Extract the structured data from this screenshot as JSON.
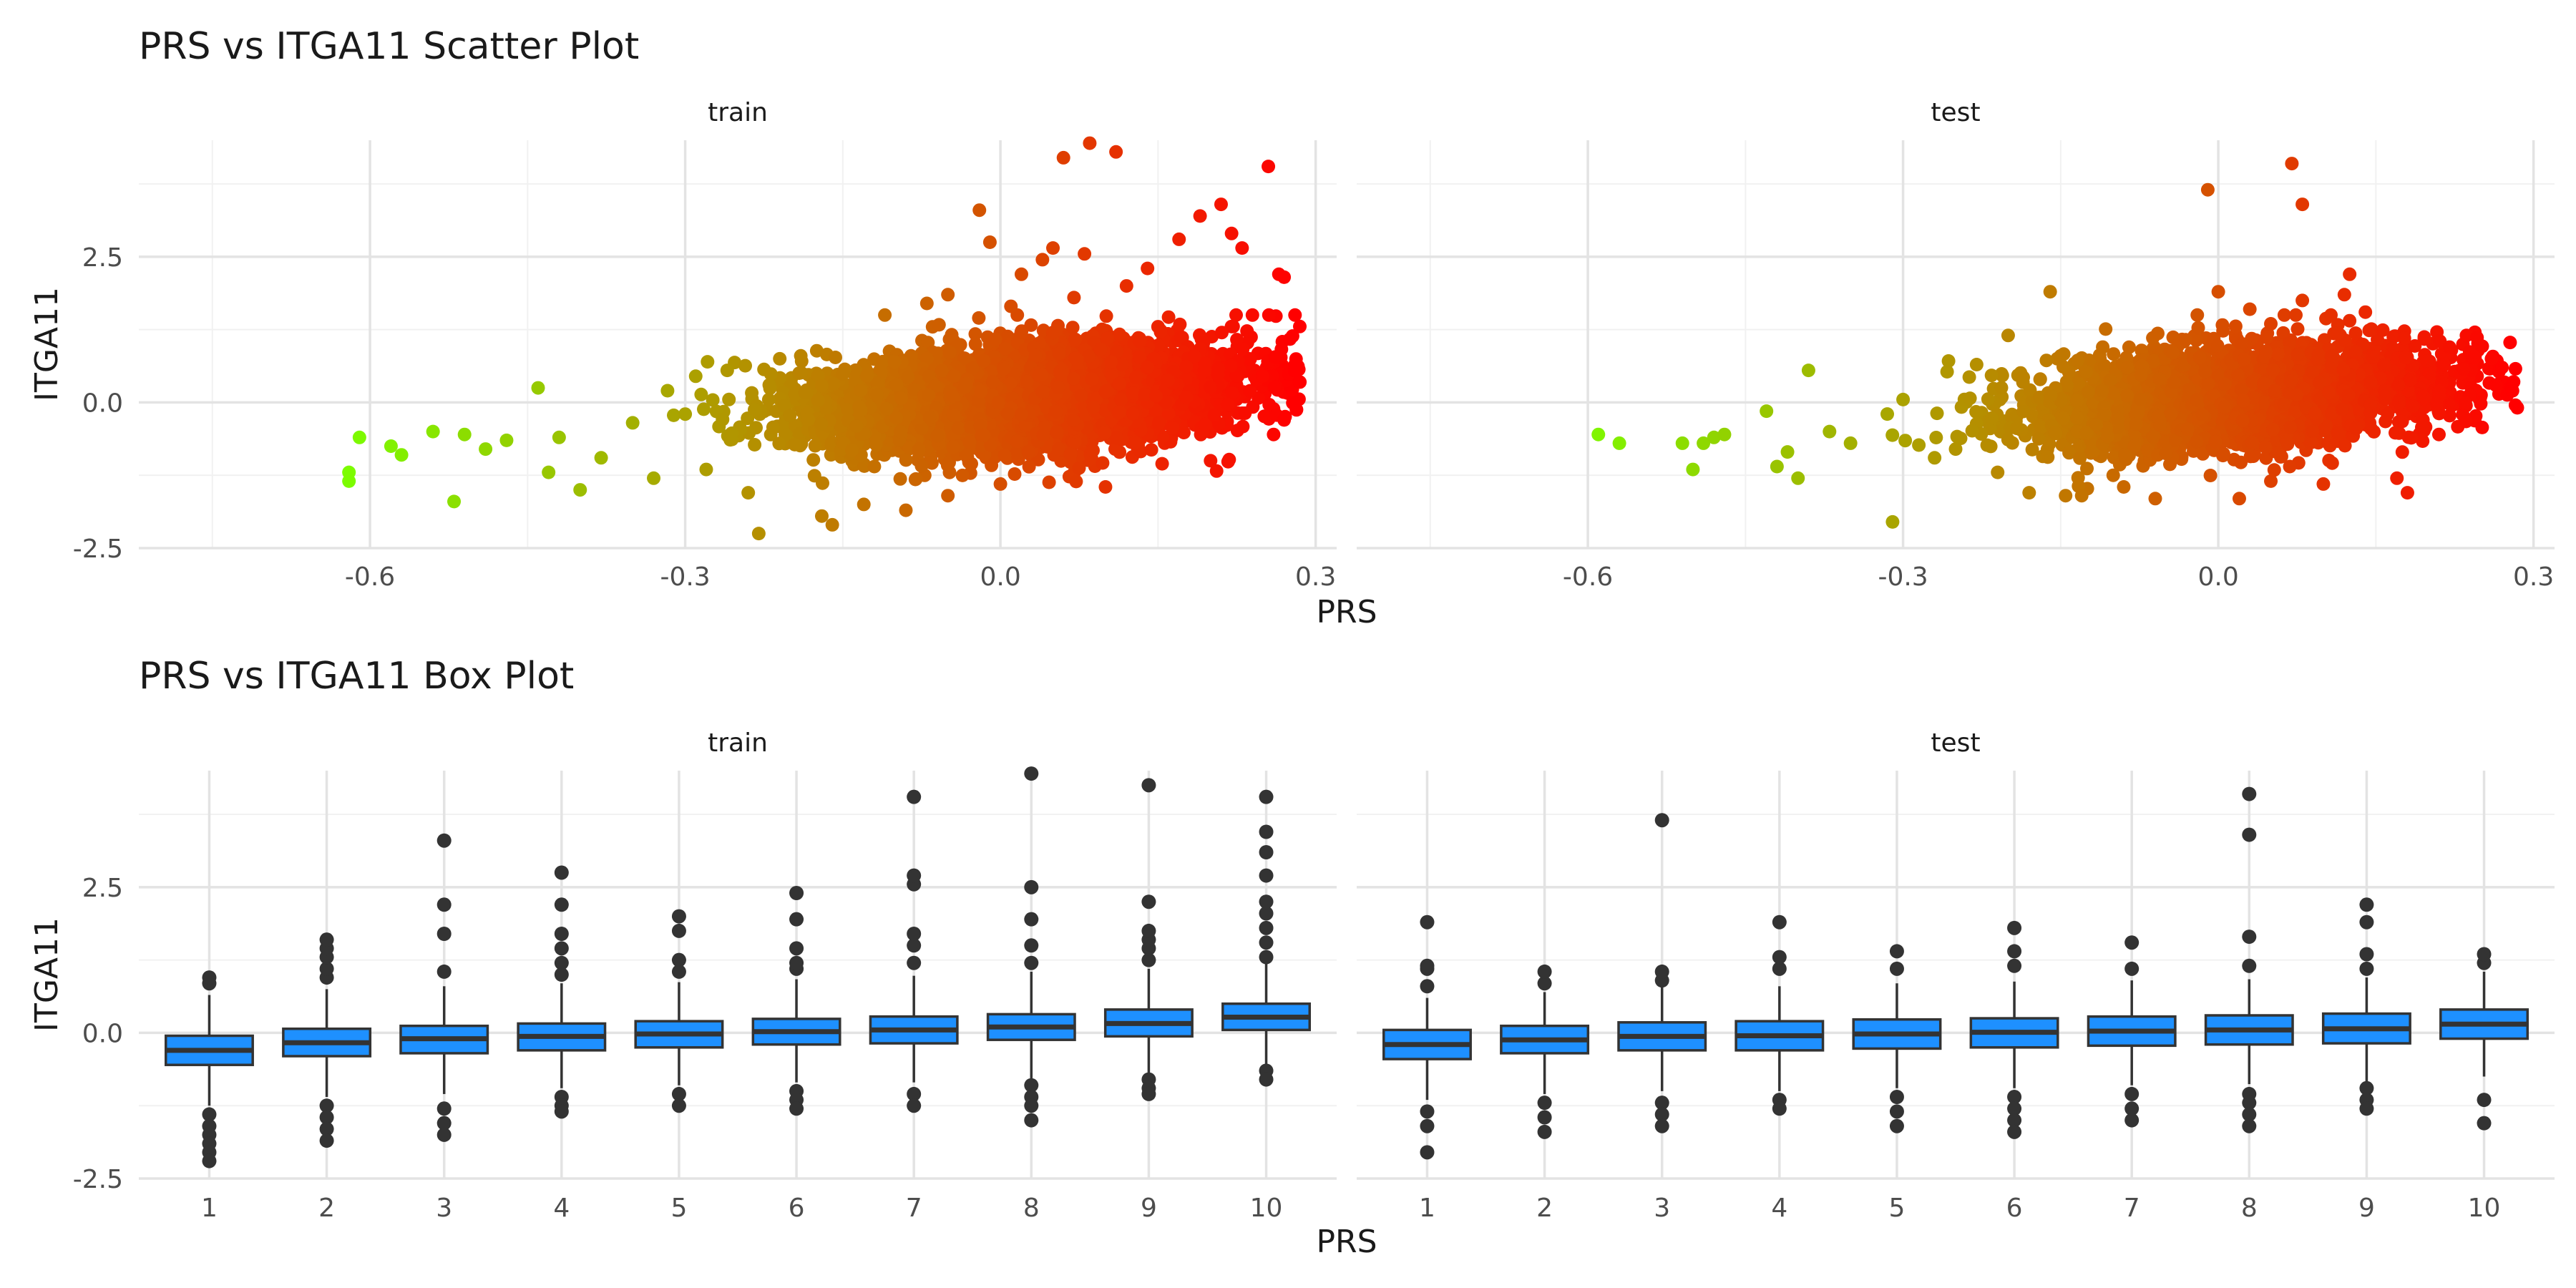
{
  "chart_data": [
    {
      "type": "scatter",
      "title": "PRS vs ITGA11 Scatter Plot",
      "xlabel": "PRS",
      "ylabel": "ITGA11",
      "xlim": [
        -0.82,
        0.32
      ],
      "ylim": [
        -2.5,
        4.5
      ],
      "xticks": [
        -0.6,
        -0.3,
        0.0,
        0.3
      ],
      "xtick_labels": [
        "-0.6",
        "-0.3",
        "0.0",
        "0.3"
      ],
      "yticks": [
        -2.5,
        0.0,
        2.5
      ],
      "ytick_labels": [
        "-2.5",
        "0.0",
        "2.5"
      ],
      "color_scale": {
        "low": "#7CFC00",
        "high": "#FF0000"
      },
      "grid": true,
      "legend": "none",
      "panels": [
        {
          "strip": "train",
          "points": [
            [
              -0.62,
              -1.35
            ],
            [
              -0.62,
              -1.2
            ],
            [
              -0.61,
              -0.6
            ],
            [
              -0.58,
              -0.75
            ],
            [
              -0.57,
              -0.9
            ],
            [
              -0.54,
              -0.5
            ],
            [
              -0.52,
              -1.7
            ],
            [
              -0.51,
              -0.55
            ],
            [
              -0.49,
              -0.8
            ],
            [
              -0.47,
              -0.65
            ],
            [
              -0.44,
              0.25
            ],
            [
              -0.43,
              -1.2
            ],
            [
              -0.42,
              -0.6
            ],
            [
              -0.4,
              -1.5
            ],
            [
              -0.38,
              -0.95
            ],
            [
              -0.35,
              -0.35
            ],
            [
              -0.33,
              -1.3
            ],
            [
              -0.3,
              -0.2
            ],
            [
              -0.29,
              0.45
            ],
            [
              -0.28,
              -1.15
            ],
            [
              -0.26,
              0.55
            ],
            [
              -0.24,
              -1.55
            ],
            [
              -0.23,
              -2.25
            ],
            [
              -0.21,
              0.75
            ],
            [
              -0.19,
              0.8
            ],
            [
              -0.17,
              -1.95
            ],
            [
              -0.16,
              -2.1
            ],
            [
              -0.13,
              -1.75
            ],
            [
              -0.11,
              1.5
            ],
            [
              -0.09,
              -1.85
            ],
            [
              -0.07,
              1.7
            ],
            [
              -0.05,
              1.85
            ],
            [
              -0.02,
              3.3
            ],
            [
              -0.01,
              2.75
            ],
            [
              0.01,
              1.65
            ],
            [
              0.02,
              2.2
            ],
            [
              0.04,
              2.45
            ],
            [
              0.05,
              2.65
            ],
            [
              0.06,
              4.2
            ],
            [
              0.07,
              1.8
            ],
            [
              0.08,
              2.55
            ],
            [
              0.085,
              4.45
            ],
            [
              0.11,
              4.3
            ],
            [
              0.12,
              2.0
            ],
            [
              0.14,
              2.3
            ],
            [
              0.17,
              2.8
            ],
            [
              0.19,
              3.2
            ],
            [
              0.21,
              3.4
            ],
            [
              0.22,
              2.9
            ],
            [
              0.23,
              2.65
            ],
            [
              0.255,
              4.05
            ],
            [
              0.265,
              2.2
            ],
            [
              0.27,
              2.15
            ],
            [
              0.26,
              -0.55
            ],
            [
              0.28,
              0.55
            ],
            [
              0.285,
              0.35
            ],
            [
              0.27,
              -0.3
            ],
            [
              0.2,
              -1.0
            ],
            [
              0.1,
              -1.45
            ],
            [
              0.0,
              -1.4
            ],
            [
              -0.05,
              -1.6
            ],
            [
              0.15,
              1.3
            ],
            [
              -0.12,
              -1.1
            ],
            [
              0.05,
              1.2
            ],
            [
              -0.22,
              0.3
            ]
          ]
        },
        {
          "strip": "test",
          "points": [
            [
              -0.59,
              -0.55
            ],
            [
              -0.57,
              -0.7
            ],
            [
              -0.51,
              -0.7
            ],
            [
              -0.5,
              -1.15
            ],
            [
              -0.49,
              -0.7
            ],
            [
              -0.48,
              -0.6
            ],
            [
              -0.47,
              -0.55
            ],
            [
              -0.43,
              -0.15
            ],
            [
              -0.42,
              -1.1
            ],
            [
              -0.41,
              -0.85
            ],
            [
              -0.4,
              -1.3
            ],
            [
              -0.39,
              0.55
            ],
            [
              -0.37,
              -0.5
            ],
            [
              -0.35,
              -0.7
            ],
            [
              -0.31,
              -2.05
            ],
            [
              -0.3,
              0.05
            ],
            [
              -0.27,
              -0.95
            ],
            [
              -0.23,
              0.65
            ],
            [
              -0.21,
              -1.2
            ],
            [
              -0.2,
              1.15
            ],
            [
              -0.18,
              -1.55
            ],
            [
              -0.16,
              1.9
            ],
            [
              -0.15,
              0.8
            ],
            [
              -0.13,
              -1.6
            ],
            [
              -0.11,
              0.95
            ],
            [
              -0.09,
              -1.45
            ],
            [
              -0.06,
              -1.65
            ],
            [
              -0.01,
              3.65
            ],
            [
              -0.02,
              1.5
            ],
            [
              0.0,
              1.9
            ],
            [
              0.02,
              -1.65
            ],
            [
              0.03,
              1.6
            ],
            [
              0.05,
              1.35
            ],
            [
              0.07,
              4.1
            ],
            [
              0.08,
              3.4
            ],
            [
              0.08,
              1.75
            ],
            [
              0.1,
              -1.4
            ],
            [
              0.12,
              1.85
            ],
            [
              0.125,
              2.2
            ],
            [
              0.14,
              1.55
            ],
            [
              0.17,
              -1.3
            ],
            [
              0.18,
              -1.55
            ],
            [
              0.21,
              -0.55
            ],
            [
              0.26,
              0.75
            ],
            [
              0.27,
              0.6
            ],
            [
              0.28,
              0.2
            ],
            [
              0.22,
              0.95
            ],
            [
              -0.1,
              -1.25
            ],
            [
              0.05,
              -1.35
            ],
            [
              -0.25,
              -0.8
            ]
          ]
        }
      ]
    },
    {
      "type": "box",
      "title": "PRS vs ITGA11 Box Plot",
      "xlabel": "PRS",
      "ylabel": "ITGA11",
      "categories": [
        "1",
        "2",
        "3",
        "4",
        "5",
        "6",
        "7",
        "8",
        "9",
        "10"
      ],
      "ylim": [
        -2.5,
        4.5
      ],
      "yticks": [
        -2.5,
        0.0,
        2.5
      ],
      "ytick_labels": [
        "-2.5",
        "0.0",
        "2.5"
      ],
      "box_color": "#1E90FF",
      "grid": true,
      "panels": [
        {
          "strip": "train",
          "boxes": [
            {
              "q1": -0.55,
              "median": -0.3,
              "q3": -0.05,
              "lo": -1.25,
              "hi": 0.65
            },
            {
              "q1": -0.4,
              "median": -0.17,
              "q3": 0.07,
              "lo": -1.1,
              "hi": 0.75
            },
            {
              "q1": -0.35,
              "median": -0.1,
              "q3": 0.12,
              "lo": -1.05,
              "hi": 0.8
            },
            {
              "q1": -0.3,
              "median": -0.06,
              "q3": 0.16,
              "lo": -0.95,
              "hi": 0.85
            },
            {
              "q1": -0.25,
              "median": -0.02,
              "q3": 0.2,
              "lo": -0.9,
              "hi": 0.87
            },
            {
              "q1": -0.2,
              "median": 0.02,
              "q3": 0.24,
              "lo": -0.85,
              "hi": 0.92
            },
            {
              "q1": -0.18,
              "median": 0.05,
              "q3": 0.28,
              "lo": -0.85,
              "hi": 0.98
            },
            {
              "q1": -0.12,
              "median": 0.1,
              "q3": 0.32,
              "lo": -0.8,
              "hi": 1.05
            },
            {
              "q1": -0.06,
              "median": 0.16,
              "q3": 0.4,
              "lo": -0.7,
              "hi": 1.1
            },
            {
              "q1": 0.05,
              "median": 0.27,
              "q3": 0.5,
              "lo": -0.55,
              "hi": 1.2
            }
          ],
          "outliers": [
            [
              -1.4,
              -1.6,
              -1.75,
              -1.9,
              -2.05,
              -2.2,
              0.85,
              0.95
            ],
            [
              -1.25,
              -1.45,
              -1.65,
              -1.85,
              0.95,
              1.1,
              1.3,
              1.45,
              1.6
            ],
            [
              -1.3,
              -1.55,
              -1.75,
              1.05,
              1.7,
              2.2,
              3.3
            ],
            [
              -1.1,
              -1.25,
              -1.35,
              1.0,
              1.2,
              1.45,
              1.7,
              2.2,
              2.75
            ],
            [
              -1.05,
              -1.25,
              1.05,
              1.25,
              1.75,
              2.0
            ],
            [
              -1.0,
              -1.15,
              -1.3,
              1.1,
              1.2,
              1.45,
              1.95,
              2.4
            ],
            [
              -1.05,
              -1.25,
              1.2,
              1.5,
              1.7,
              2.55,
              2.7,
              4.05
            ],
            [
              -0.9,
              -1.1,
              -1.25,
              -1.5,
              1.2,
              1.5,
              1.95,
              2.5,
              4.45
            ],
            [
              -0.8,
              -0.95,
              -1.05,
              1.25,
              1.45,
              1.6,
              1.75,
              2.25,
              4.25
            ],
            [
              -0.65,
              -0.8,
              1.3,
              1.55,
              1.8,
              2.05,
              2.25,
              2.7,
              3.1,
              3.45,
              4.05
            ]
          ]
        },
        {
          "strip": "test",
          "boxes": [
            {
              "q1": -0.45,
              "median": -0.2,
              "q3": 0.05,
              "lo": -1.15,
              "hi": 0.6
            },
            {
              "q1": -0.35,
              "median": -0.12,
              "q3": 0.12,
              "lo": -1.05,
              "hi": 0.7
            },
            {
              "q1": -0.3,
              "median": -0.06,
              "q3": 0.18,
              "lo": -1.0,
              "hi": 0.78
            },
            {
              "q1": -0.3,
              "median": -0.05,
              "q3": 0.2,
              "lo": -1.0,
              "hi": 0.8
            },
            {
              "q1": -0.27,
              "median": -0.02,
              "q3": 0.23,
              "lo": -0.95,
              "hi": 0.85
            },
            {
              "q1": -0.25,
              "median": 0.01,
              "q3": 0.25,
              "lo": -0.95,
              "hi": 0.88
            },
            {
              "q1": -0.22,
              "median": 0.03,
              "q3": 0.28,
              "lo": -0.9,
              "hi": 0.9
            },
            {
              "q1": -0.2,
              "median": 0.05,
              "q3": 0.3,
              "lo": -0.88,
              "hi": 0.92
            },
            {
              "q1": -0.18,
              "median": 0.07,
              "q3": 0.33,
              "lo": -0.85,
              "hi": 0.95
            },
            {
              "q1": -0.1,
              "median": 0.15,
              "q3": 0.4,
              "lo": -0.75,
              "hi": 1.05
            }
          ],
          "outliers": [
            [
              -1.35,
              -1.6,
              -2.05,
              0.8,
              1.1,
              1.15,
              1.9
            ],
            [
              -1.2,
              -1.45,
              -1.7,
              0.85,
              1.05
            ],
            [
              -1.2,
              -1.4,
              -1.6,
              0.9,
              1.05,
              3.65
            ],
            [
              -1.15,
              -1.3,
              1.1,
              1.3,
              1.9
            ],
            [
              -1.1,
              -1.35,
              -1.6,
              1.1,
              1.4
            ],
            [
              -1.1,
              -1.3,
              -1.5,
              -1.7,
              1.15,
              1.4,
              1.8
            ],
            [
              -1.05,
              -1.3,
              -1.5,
              1.1,
              1.55
            ],
            [
              -1.05,
              -1.2,
              -1.4,
              -1.6,
              1.15,
              1.65,
              3.4,
              4.1
            ],
            [
              -0.95,
              -1.15,
              -1.3,
              1.1,
              1.35,
              1.9,
              2.2
            ],
            [
              -1.15,
              -1.55,
              1.2,
              1.35
            ]
          ]
        }
      ]
    }
  ]
}
